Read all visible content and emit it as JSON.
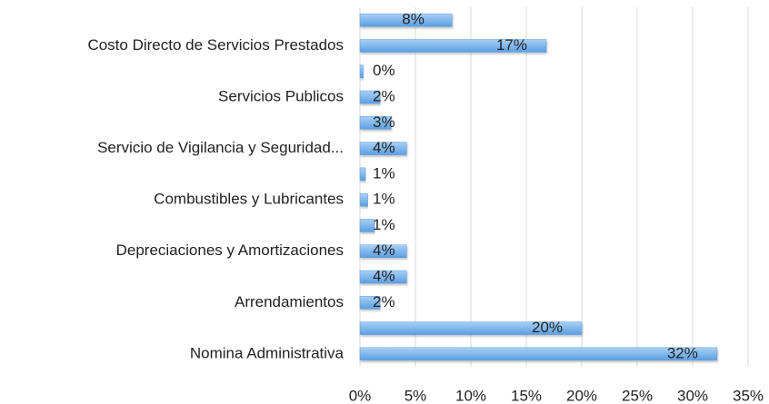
{
  "chart_data": {
    "type": "bar",
    "orientation": "horizontal",
    "categories": [
      null,
      "Costo Directo de Servicios Prestados",
      null,
      "Servicios Publicos",
      null,
      "Servicio de Vigilancia y Seguridad...",
      null,
      "Combustibles y Lubricantes",
      null,
      "Depreciaciones y Amortizaciones",
      null,
      "Arrendamientos",
      null,
      "Nomina Administrativa"
    ],
    "values": [
      8.3,
      16.8,
      0.3,
      1.8,
      2.8,
      4.2,
      0.5,
      0.7,
      1.3,
      4.2,
      4.2,
      1.8,
      20,
      32.2
    ],
    "value_labels": [
      "8%",
      "17%",
      "0%",
      "2%",
      "3%",
      "4%",
      "1%",
      "1%",
      "1%",
      "4%",
      "4%",
      "2%",
      "20%",
      "32%"
    ],
    "color": "#5b9fe2",
    "xlim": [
      0,
      35
    ],
    "xticks": [
      {
        "value": 0,
        "label": "0%"
      },
      {
        "value": 5,
        "label": "5%"
      },
      {
        "value": 10,
        "label": "10%"
      },
      {
        "value": 15,
        "label": "15%"
      },
      {
        "value": 20,
        "label": "20%"
      },
      {
        "value": 25,
        "label": "25%"
      },
      {
        "value": 30,
        "label": "30%"
      },
      {
        "value": 35,
        "label": "35%"
      }
    ],
    "grid": true
  }
}
